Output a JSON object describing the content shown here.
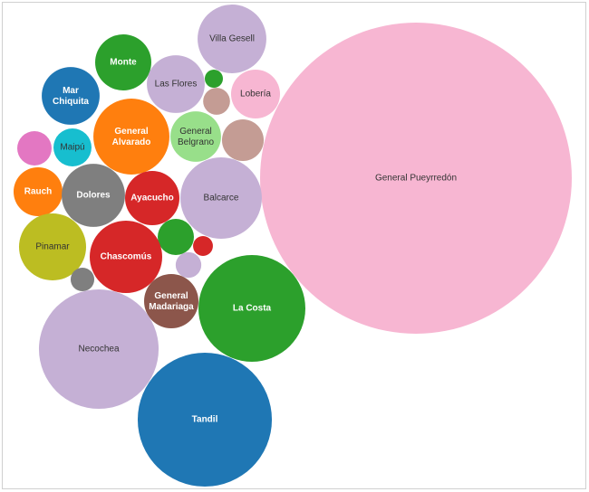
{
  "chart_data": {
    "type": "packed-bubble",
    "categories": [
      "General Pueyrredón",
      "Villa Gesell",
      "Monte",
      "Las Flores",
      null,
      null,
      "Lobería",
      "Mar Chiquita",
      "General Alvarado",
      "General Belgrano",
      null,
      null,
      "Maipú",
      "Rauch",
      "Dolores",
      "Ayacucho",
      "Balcarce",
      "Pinamar",
      null,
      null,
      "Chascomús",
      null,
      null,
      "General Madariaga",
      "La Costa",
      "Necochea",
      "Tandil"
    ],
    "values": [
      2958,
      144,
      96,
      102,
      10,
      22,
      73,
      102,
      176,
      78,
      53,
      36,
      44,
      73,
      122,
      90,
      202,
      137,
      40,
      12,
      160,
      20,
      17,
      90,
      348,
      436,
      548
    ],
    "colors": [
      "#f7b6d2",
      "#c5b0d5",
      "#2ca02c",
      "#c5b0d5",
      "#2ca02c",
      "#c49c94",
      "#f7b6d2",
      "#1f77b4",
      "#ff7f0e",
      "#98df8a",
      "#c49c94",
      "#e377c2",
      "#17becf",
      "#ff7f0e",
      "#7f7f7f",
      "#d62728",
      "#c5b0d5",
      "#bcbd22",
      "#2ca02c",
      "#d62728",
      "#d62728",
      "#c5b0d5",
      "#7f7f7f",
      "#8c564b",
      "#2ca02c",
      "#c5b0d5",
      "#1f77b4"
    ]
  }
}
